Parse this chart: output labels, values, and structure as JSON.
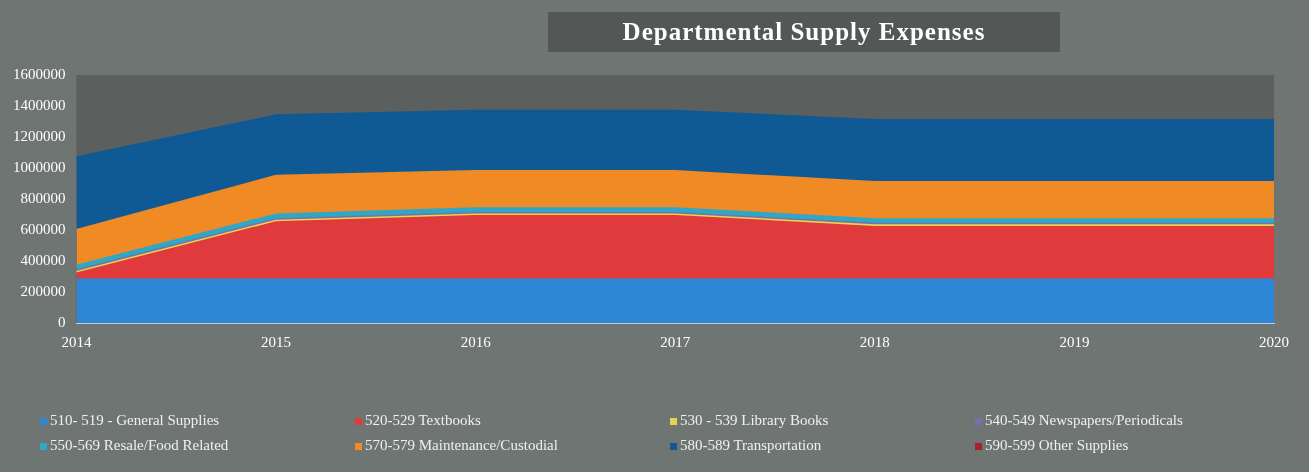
{
  "chart_data": {
    "type": "area",
    "title": "Departmental Supply Expenses",
    "stacked": true,
    "grid": false,
    "legend": "bottom",
    "marker": "none",
    "categories": [
      "2014",
      "2015",
      "2016",
      "2017",
      "2018",
      "2019",
      "2020"
    ],
    "ylim": [
      0,
      1600000
    ],
    "yticks": [
      0,
      200000,
      400000,
      600000,
      800000,
      1000000,
      1200000,
      1400000,
      1600000
    ],
    "series": [
      {
        "name": "510- 519 - General Supplies",
        "color": "#2e86d6",
        "values": [
          280000,
          280000,
          280000,
          280000,
          280000,
          280000,
          280000
        ]
      },
      {
        "name": "520-529 Textbooks",
        "color": "#e03a3c",
        "values": [
          40000,
          370000,
          410000,
          410000,
          340000,
          340000,
          340000
        ]
      },
      {
        "name": "530 - 539 Library Books",
        "color": "#e8d44a",
        "values": [
          10000,
          10000,
          10000,
          10000,
          10000,
          10000,
          10000
        ]
      },
      {
        "name": "540-549 Newspapers/Periodicals",
        "color": "#7a6fa8",
        "values": [
          10000,
          10000,
          10000,
          10000,
          10000,
          10000,
          10000
        ]
      },
      {
        "name": "550-569 Resale/Food Related",
        "color": "#2ea8c8",
        "values": [
          30000,
          30000,
          30000,
          30000,
          30000,
          30000,
          30000
        ]
      },
      {
        "name": "570-579 Maintenance/Custodial",
        "color": "#f08a24",
        "values": [
          230000,
          250000,
          240000,
          240000,
          240000,
          240000,
          240000
        ]
      },
      {
        "name": "580-589 Transportation",
        "color": "#0f5a94",
        "values": [
          470000,
          390000,
          390000,
          390000,
          400000,
          400000,
          400000
        ]
      },
      {
        "name": "590-599 Other Supplies",
        "color": "#a8222a",
        "values": [
          null,
          null,
          null,
          null,
          null,
          null,
          null
        ]
      }
    ]
  }
}
